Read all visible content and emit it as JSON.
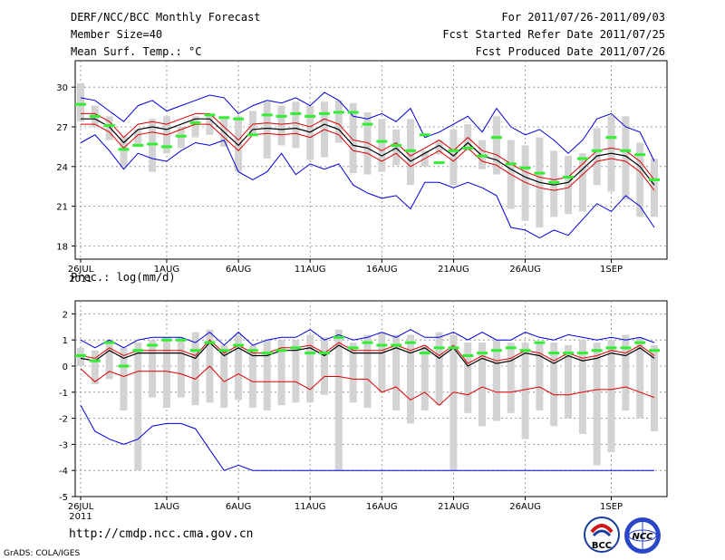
{
  "header": {
    "title": "DERF/NCC/BCC Monthly Forecast",
    "member_size": "Member Size=40",
    "variable": "Mean Surf. Temp.: °C",
    "period": "For 2011/07/26-2011/09/03",
    "refer_date": "Fcst Started Refer Date 2011/07/25",
    "produced_date": "Fcst Produced Date 2011/07/26"
  },
  "footer": {
    "url": "http://cmdp.ncc.cma.gov.cn",
    "credit": "GrADS: COLA/IGES",
    "logo_left_text": "BCC",
    "logo_right_text": "NCC"
  },
  "colors": {
    "box": "#d3d3d3",
    "obs": "#33ee33",
    "mean": "#000000",
    "spread": "#dd0000",
    "envelope": "#0000dd",
    "grid": "#888888"
  },
  "chart_data": [
    {
      "type": "box-whisker-line",
      "name": "temperature",
      "title": "Mean Surf. Temp.: °C",
      "x_start_label": "26JUL",
      "x_start_year": "2011",
      "x_tick_labels": [
        "26JUL",
        "1AUG",
        "6AUG",
        "11AUG",
        "16AUG",
        "21AUG",
        "26AUG",
        "1SEP"
      ],
      "x_tick_days": [
        0,
        6,
        11,
        16,
        21,
        26,
        31,
        37
      ],
      "days": 40,
      "ylim": [
        17,
        32
      ],
      "yticks": [
        18,
        21,
        24,
        27,
        30
      ],
      "y_tick_labels": [
        "18",
        "21",
        "24",
        "27",
        "30"
      ],
      "ensemble_max": [
        29.2,
        29.0,
        28.2,
        27.4,
        28.6,
        29.0,
        28.2,
        28.6,
        29.0,
        29.4,
        29.2,
        28.0,
        28.6,
        29.0,
        28.8,
        29.2,
        28.6,
        29.6,
        29.0,
        27.8,
        27.6,
        28.0,
        27.4,
        28.4,
        26.2,
        26.6,
        27.2,
        27.8,
        26.6,
        28.4,
        27.0,
        26.4,
        26.8,
        26.0,
        25.0,
        26.0,
        27.6,
        28.0,
        27.0,
        26.6,
        24.4
      ],
      "ensemble_min": [
        25.8,
        26.4,
        25.2,
        23.8,
        25.0,
        24.6,
        24.4,
        25.2,
        25.8,
        25.6,
        26.0,
        23.6,
        23.0,
        23.6,
        25.0,
        23.4,
        24.2,
        23.8,
        24.2,
        22.6,
        22.0,
        21.6,
        21.8,
        20.8,
        22.8,
        22.8,
        22.4,
        22.8,
        22.4,
        21.8,
        19.4,
        19.2,
        18.6,
        19.2,
        18.8,
        20.0,
        21.2,
        20.6,
        21.8,
        21.0,
        19.4
      ],
      "ensemble_mean": [
        27.6,
        27.6,
        27.0,
        25.8,
        26.8,
        27.0,
        26.8,
        27.2,
        27.6,
        27.6,
        26.6,
        25.6,
        26.8,
        26.9,
        26.8,
        26.9,
        26.6,
        27.2,
        26.8,
        25.6,
        25.4,
        24.8,
        25.4,
        24.4,
        25.0,
        25.6,
        24.8,
        25.8,
        24.8,
        24.5,
        23.8,
        23.2,
        22.8,
        22.6,
        22.8,
        23.8,
        24.8,
        25.0,
        24.8,
        24.0,
        22.6
      ],
      "spread_upper": [
        28.0,
        28.0,
        27.4,
        26.2,
        27.2,
        27.4,
        27.2,
        27.6,
        28.0,
        28.0,
        27.0,
        26.0,
        27.2,
        27.3,
        27.2,
        27.3,
        27.0,
        27.6,
        27.2,
        26.0,
        25.8,
        25.2,
        25.8,
        24.8,
        25.4,
        26.0,
        25.2,
        26.2,
        25.2,
        24.9,
        24.2,
        23.6,
        23.2,
        23.0,
        23.2,
        24.2,
        25.2,
        25.4,
        25.2,
        24.4,
        23.0
      ],
      "spread_lower": [
        27.2,
        27.2,
        26.6,
        25.4,
        26.4,
        26.6,
        26.4,
        26.8,
        27.2,
        27.2,
        26.2,
        25.2,
        26.4,
        26.5,
        26.4,
        26.5,
        26.2,
        26.8,
        26.4,
        25.2,
        25.0,
        24.4,
        25.0,
        24.0,
        24.6,
        25.2,
        24.4,
        25.4,
        24.4,
        24.1,
        23.4,
        22.8,
        22.4,
        22.2,
        22.4,
        23.4,
        24.4,
        24.6,
        24.4,
        23.6,
        22.2
      ],
      "box_high": [
        30.3,
        28.6,
        27.8,
        26.3,
        26.8,
        27.6,
        27.8,
        27.0,
        27.8,
        28.0,
        27.6,
        27.8,
        28.2,
        28.9,
        28.6,
        28.9,
        28.6,
        28.9,
        29.0,
        28.8,
        28.1,
        27.6,
        26.8,
        27.6,
        25.2,
        26.0,
        26.8,
        27.2,
        26.0,
        27.8,
        26.0,
        25.6,
        26.2,
        25.2,
        24.8,
        25.0,
        26.9,
        27.8,
        27.8,
        25.8,
        24.6
      ],
      "box_low": [
        27.4,
        27.0,
        26.0,
        24.0,
        25.6,
        23.6,
        25.0,
        25.4,
        26.2,
        26.4,
        25.5,
        23.6,
        26.4,
        24.6,
        25.6,
        25.4,
        24.5,
        24.7,
        25.8,
        23.5,
        23.4,
        23.6,
        24.1,
        22.6,
        24.0,
        24.9,
        22.6,
        25.2,
        23.8,
        23.4,
        20.8,
        19.9,
        19.4,
        20.2,
        20.4,
        20.6,
        22.6,
        22.1,
        21.5,
        20.2,
        20.2
      ],
      "observed": [
        28.7,
        27.8,
        27.1,
        25.3,
        25.6,
        25.7,
        25.5,
        26.3,
        27.3,
        27.9,
        27.7,
        27.6,
        26.4,
        27.9,
        27.8,
        28.0,
        27.8,
        28.0,
        28.1,
        28.1,
        27.2,
        25.9,
        25.6,
        25.2,
        26.4,
        24.3,
        25.2,
        25.4,
        24.8,
        26.2,
        24.2,
        23.9,
        23.5,
        22.8,
        23.2,
        24.6,
        25.2,
        26.2,
        25.2,
        24.9,
        23.0
      ]
    },
    {
      "type": "box-whisker-line",
      "name": "precipitation",
      "title": "Prec.: log(mm/d)",
      "x_start_label": "26JUL",
      "x_start_year": "2011",
      "x_tick_labels": [
        "26JUL",
        "1AUG",
        "6AUG",
        "11AUG",
        "16AUG",
        "21AUG",
        "26AUG",
        "1SEP"
      ],
      "x_tick_days": [
        0,
        6,
        11,
        16,
        21,
        26,
        31,
        37
      ],
      "days": 40,
      "ylim": [
        -5,
        2.5
      ],
      "yticks": [
        -5,
        -4,
        -3,
        -2,
        -1,
        0,
        1,
        2
      ],
      "y_tick_labels": [
        "-5",
        "-4",
        "-3",
        "-2",
        "-1",
        "0",
        "1",
        "2"
      ],
      "ensemble_max": [
        1.0,
        0.7,
        1.0,
        0.7,
        1.0,
        1.1,
        1.1,
        1.1,
        0.9,
        1.3,
        0.8,
        1.3,
        0.8,
        1.0,
        1.1,
        1.1,
        1.4,
        1.0,
        1.2,
        1.0,
        1.1,
        1.3,
        1.1,
        1.4,
        1.1,
        1.1,
        1.3,
        1.0,
        1.3,
        1.0,
        1.0,
        1.3,
        1.1,
        1.0,
        1.2,
        1.1,
        1.0,
        1.1,
        1.0,
        1.1,
        0.9
      ],
      "ensemble_min": [
        -1.5,
        -2.5,
        -2.8,
        -3.0,
        -2.8,
        -2.3,
        -2.2,
        -2.2,
        -2.4,
        -3.2,
        -4.0,
        -3.8,
        -4.0,
        -4.0,
        -4.0,
        -4.0,
        -4.0,
        -4.0,
        -4.0,
        -4.0,
        -4.0,
        -4.0,
        -4.0,
        -4.0,
        -4.0,
        -4.0,
        -4.0,
        -4.0,
        -4.0,
        -4.0,
        -4.0,
        -4.0,
        -4.0,
        -4.0,
        -4.0,
        -4.0,
        -4.0,
        -4.0,
        -4.0,
        -4.0,
        -4.0
      ],
      "ensemble_mean": [
        0.3,
        0.2,
        0.6,
        0.3,
        0.5,
        0.5,
        0.5,
        0.5,
        0.3,
        0.9,
        0.4,
        0.7,
        0.4,
        0.4,
        0.6,
        0.6,
        0.7,
        0.4,
        0.8,
        0.5,
        0.5,
        0.5,
        0.7,
        0.5,
        0.7,
        0.3,
        0.7,
        0.0,
        0.3,
        0.1,
        0.2,
        0.5,
        0.4,
        0.1,
        0.4,
        0.2,
        0.3,
        0.5,
        0.4,
        0.7,
        0.3
      ],
      "spread_upper": [
        0.4,
        0.3,
        0.7,
        0.4,
        0.6,
        0.6,
        0.6,
        0.6,
        0.4,
        1.0,
        0.5,
        0.8,
        0.5,
        0.5,
        0.7,
        0.7,
        0.8,
        0.5,
        0.9,
        0.6,
        0.6,
        0.6,
        0.8,
        0.6,
        0.8,
        0.4,
        0.8,
        0.1,
        0.4,
        0.2,
        0.3,
        0.6,
        0.5,
        0.2,
        0.5,
        0.3,
        0.4,
        0.6,
        0.5,
        0.8,
        0.4
      ],
      "spread_lower": [
        -0.1,
        -0.6,
        -0.2,
        -0.4,
        -0.2,
        -0.2,
        -0.2,
        -0.3,
        -0.5,
        0.0,
        -0.6,
        -0.3,
        -0.6,
        -0.6,
        -0.6,
        -0.6,
        -0.9,
        -0.4,
        -0.4,
        -0.5,
        -0.5,
        -1.0,
        -0.8,
        -1.3,
        -1.0,
        -1.5,
        -1.0,
        -1.1,
        -0.8,
        -1.0,
        -1.0,
        -0.9,
        -0.8,
        -1.1,
        -1.1,
        -1.0,
        -0.9,
        -0.9,
        -0.8,
        -1.0,
        -1.2
      ],
      "box_high": [
        0.7,
        0.6,
        1.0,
        0.7,
        0.9,
        1.0,
        1.1,
        1.1,
        1.3,
        1.4,
        0.8,
        1.2,
        0.8,
        1.0,
        1.0,
        1.0,
        1.2,
        1.1,
        1.4,
        0.9,
        1.2,
        1.3,
        1.2,
        1.2,
        0.8,
        1.3,
        1.2,
        0.9,
        0.9,
        1.0,
        0.9,
        0.9,
        0.9,
        0.9,
        0.8,
        1.0,
        0.9,
        1.0,
        1.2,
        1.1,
        0.8
      ],
      "box_low": [
        0.0,
        -0.7,
        -0.5,
        -1.7,
        -4.0,
        -1.2,
        -1.6,
        -1.2,
        -1.5,
        -1.4,
        -1.6,
        -1.3,
        -1.6,
        -1.7,
        -1.5,
        -1.4,
        -1.4,
        -1.1,
        -4.0,
        -1.4,
        -1.6,
        -1.0,
        -1.7,
        -2.2,
        -1.7,
        -1.5,
        -4.0,
        -1.8,
        -2.3,
        -2.1,
        -1.8,
        -2.8,
        -1.7,
        -2.3,
        -2.0,
        -2.6,
        -3.8,
        -3.3,
        -1.7,
        -2.0,
        -2.5
      ],
      "observed": [
        0.4,
        0.2,
        0.9,
        0.0,
        0.6,
        0.8,
        1.0,
        1.0,
        0.6,
        0.9,
        0.6,
        0.8,
        0.6,
        0.5,
        0.6,
        0.7,
        0.5,
        0.5,
        1.1,
        0.7,
        0.9,
        0.8,
        0.8,
        0.9,
        0.5,
        0.7,
        0.7,
        0.4,
        0.5,
        0.6,
        0.7,
        0.6,
        0.9,
        0.5,
        0.5,
        0.5,
        0.6,
        0.7,
        0.7,
        0.9,
        0.6
      ]
    }
  ]
}
